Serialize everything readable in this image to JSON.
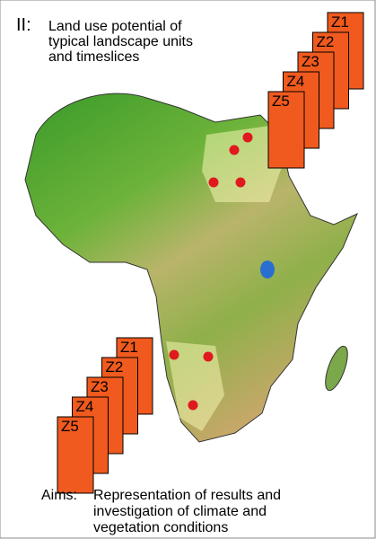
{
  "header": {
    "number": "II:",
    "title_lines": [
      "Land use potential of",
      "typical landscape units",
      "and timeslices"
    ]
  },
  "stacks": [
    {
      "labels": [
        "Z1",
        "Z2",
        "Z3",
        "Z4",
        "Z5"
      ]
    },
    {
      "labels": [
        "Z1",
        "Z2",
        "Z3",
        "Z4",
        "Z5"
      ]
    }
  ],
  "aims": {
    "label": "Aims:",
    "lines": [
      "Representation of results and",
      "investigation of climate and",
      "vegetation conditions"
    ]
  }
}
